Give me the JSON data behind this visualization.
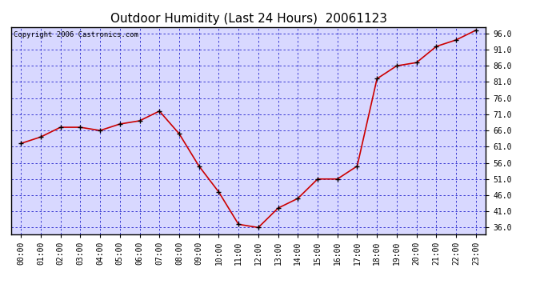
{
  "title": "Outdoor Humidity (Last 24 Hours)  20061123",
  "copyright_text": "Copyright 2006 Castronics.com",
  "x_labels": [
    "00:00",
    "01:00",
    "02:00",
    "03:00",
    "04:00",
    "05:00",
    "06:00",
    "07:00",
    "08:00",
    "09:00",
    "10:00",
    "11:00",
    "12:00",
    "13:00",
    "14:00",
    "15:00",
    "16:00",
    "17:00",
    "18:00",
    "19:00",
    "20:00",
    "21:00",
    "22:00",
    "23:00"
  ],
  "x_values": [
    0,
    1,
    2,
    3,
    4,
    5,
    6,
    7,
    8,
    9,
    10,
    11,
    12,
    13,
    14,
    15,
    16,
    17,
    18,
    19,
    20,
    21,
    22,
    23
  ],
  "y_values": [
    62,
    64,
    67,
    67,
    66,
    68,
    69,
    72,
    65,
    55,
    47,
    37,
    36,
    42,
    45,
    51,
    51,
    55,
    82,
    86,
    87,
    92,
    94,
    97
  ],
  "ylim": [
    34,
    98
  ],
  "yticks": [
    36.0,
    41.0,
    46.0,
    51.0,
    56.0,
    61.0,
    66.0,
    71.0,
    76.0,
    81.0,
    86.0,
    91.0,
    96.0
  ],
  "line_color": "#cc0000",
  "marker_color": "#000000",
  "grid_color": "#2222cc",
  "figure_bg_color": "#ffffff",
  "plot_bg_color": "#d8d8ff",
  "title_fontsize": 11,
  "copyright_fontsize": 6.5,
  "tick_fontsize": 7
}
